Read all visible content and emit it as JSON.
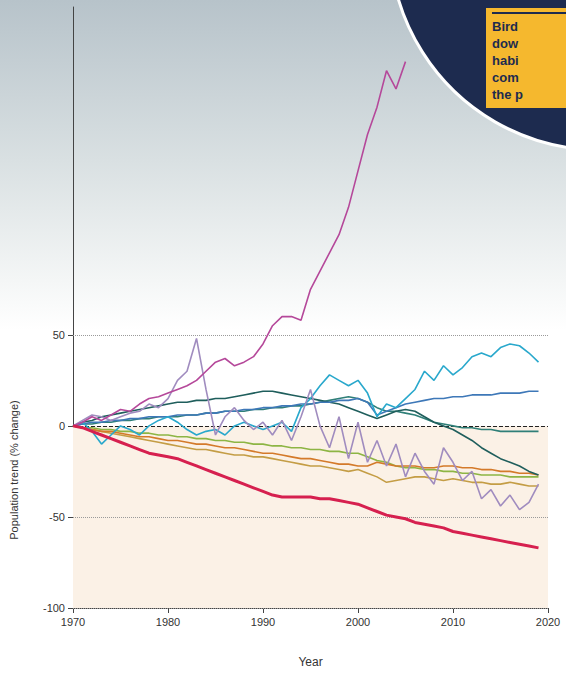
{
  "chart_data": {
    "type": "line",
    "x_label": "Year",
    "y_label": "Population trend (% change)",
    "annotation": [
      "Bird",
      "dow",
      "habi",
      "com",
      "the p"
    ],
    "xlim": [
      1970,
      2020
    ],
    "xticks": [
      1970,
      1980,
      1990,
      2000,
      2010,
      2020
    ],
    "ylim": [
      -100,
      230
    ],
    "yticks": [
      -100,
      -50,
      0,
      50
    ],
    "grid": true,
    "x": [
      1970,
      1971,
      1972,
      1973,
      1974,
      1975,
      1976,
      1977,
      1978,
      1979,
      1980,
      1981,
      1982,
      1983,
      1984,
      1985,
      1986,
      1987,
      1988,
      1989,
      1990,
      1991,
      1992,
      1993,
      1994,
      1995,
      1996,
      1997,
      1998,
      1999,
      2000,
      2001,
      2002,
      2003,
      2004,
      2005,
      2006,
      2007,
      2008,
      2009,
      2010,
      2011,
      2012,
      2013,
      2014,
      2015,
      2016,
      2017,
      2018,
      2019
    ],
    "series": [
      {
        "color": "#8db544",
        "values": [
          0,
          -1,
          -1,
          -2,
          -2,
          -3,
          -3,
          -4,
          -4,
          -5,
          -5,
          -6,
          -6,
          -7,
          -7,
          -8,
          -8,
          -9,
          -9,
          -10,
          -10,
          -11,
          -11,
          -12,
          -12,
          -13,
          -13,
          -14,
          -14,
          -15,
          -15,
          -17,
          -19,
          -20,
          -22,
          -23,
          -23,
          -24,
          -24,
          -25,
          -25,
          -26,
          -26,
          -27,
          -27,
          -27,
          -28,
          -28,
          -28,
          -28
        ]
      },
      {
        "color": "#c49d45",
        "values": [
          0,
          -1,
          -2,
          -3,
          -4,
          -5,
          -6,
          -7,
          -8,
          -9,
          -10,
          -11,
          -12,
          -13,
          -13,
          -14,
          -15,
          -16,
          -16,
          -17,
          -17,
          -18,
          -19,
          -20,
          -21,
          -22,
          -22,
          -23,
          -24,
          -25,
          -24,
          -26,
          -28,
          -31,
          -30,
          -29,
          -28,
          -28,
          -29,
          -30,
          -29,
          -30,
          -31,
          -31,
          -32,
          -32,
          -31,
          -32,
          -33,
          -33
        ]
      },
      {
        "color": "#d47a2a",
        "values": [
          0,
          -1,
          -2,
          -3,
          -3,
          -4,
          -5,
          -6,
          -6,
          -7,
          -8,
          -8,
          -9,
          -10,
          -10,
          -11,
          -12,
          -12,
          -13,
          -14,
          -15,
          -15,
          -16,
          -17,
          -18,
          -18,
          -19,
          -20,
          -21,
          -21,
          -22,
          -22,
          -20,
          -21,
          -22,
          -22,
          -22,
          -23,
          -23,
          -22,
          -22,
          -23,
          -23,
          -24,
          -24,
          -25,
          -25,
          -26,
          -26,
          -27
        ]
      },
      {
        "color": "#2f7f78",
        "values": [
          0,
          1,
          1,
          2,
          2,
          3,
          3,
          4,
          4,
          5,
          5,
          5,
          6,
          6,
          7,
          7,
          8,
          8,
          8,
          9,
          9,
          10,
          10,
          11,
          11,
          12,
          13,
          14,
          15,
          16,
          15,
          13,
          10,
          8,
          8,
          7,
          6,
          4,
          2,
          1,
          0,
          -1,
          -1,
          -2,
          -2,
          -3,
          -3,
          -3,
          -3,
          -3
        ]
      },
      {
        "color": "#1f5e5c",
        "values": [
          0,
          2,
          3,
          5,
          6,
          7,
          8,
          9,
          10,
          11,
          12,
          13,
          13,
          14,
          14,
          15,
          15,
          16,
          17,
          18,
          19,
          19,
          18,
          17,
          16,
          15,
          14,
          13,
          12,
          10,
          8,
          6,
          4,
          6,
          8,
          9,
          8,
          5,
          2,
          0,
          -2,
          -5,
          -8,
          -12,
          -15,
          -18,
          -20,
          -22,
          -25,
          -27
        ]
      },
      {
        "color": "#3e78b8",
        "values": [
          0,
          1,
          2,
          2,
          3,
          3,
          4,
          4,
          5,
          5,
          5,
          6,
          6,
          6,
          7,
          7,
          8,
          8,
          9,
          9,
          10,
          10,
          11,
          11,
          12,
          12,
          13,
          13,
          14,
          14,
          15,
          13,
          6,
          8,
          10,
          12,
          13,
          14,
          15,
          15,
          16,
          16,
          17,
          17,
          17,
          18,
          18,
          18,
          19,
          19
        ]
      },
      {
        "color": "#29a8cc",
        "values": [
          0,
          2,
          -3,
          -10,
          -5,
          0,
          -2,
          -5,
          0,
          3,
          5,
          2,
          -2,
          -5,
          -3,
          -2,
          -5,
          0,
          2,
          0,
          -2,
          0,
          2,
          -3,
          10,
          15,
          22,
          28,
          25,
          22,
          25,
          18,
          5,
          12,
          10,
          15,
          20,
          30,
          25,
          33,
          28,
          32,
          38,
          40,
          38,
          43,
          45,
          44,
          40,
          35
        ]
      },
      {
        "color": "#a08cbf",
        "values": [
          0,
          3,
          6,
          5,
          3,
          5,
          7,
          8,
          12,
          10,
          15,
          25,
          30,
          48,
          20,
          -5,
          5,
          10,
          3,
          -2,
          2,
          -5,
          3,
          -8,
          5,
          20,
          0,
          -12,
          5,
          -18,
          2,
          -20,
          -8,
          -22,
          -10,
          -28,
          -15,
          -25,
          -32,
          -12,
          -20,
          -30,
          -25,
          -40,
          -35,
          -44,
          -38,
          -46,
          -42,
          -32
        ]
      },
      {
        "color": "#b5489a",
        "values": [
          0,
          2,
          5,
          3,
          6,
          9,
          8,
          12,
          15,
          16,
          18,
          20,
          22,
          25,
          30,
          35,
          37,
          33,
          35,
          38,
          45,
          55,
          60,
          60,
          58,
          75,
          85,
          95,
          105,
          120,
          140,
          160,
          175,
          195,
          185,
          200,
          null,
          null,
          null,
          null,
          null,
          null,
          null,
          null,
          null,
          null,
          null,
          null,
          null,
          null
        ]
      },
      {
        "color": "#d6204f",
        "values": [
          0,
          -1,
          -3,
          -5,
          -7,
          -9,
          -11,
          -13,
          -15,
          -16,
          -17,
          -18,
          -20,
          -22,
          -24,
          -26,
          -28,
          -30,
          -32,
          -34,
          -36,
          -38,
          -39,
          -39,
          -39,
          -39,
          -40,
          -40,
          -41,
          -42,
          -43,
          -45,
          -47,
          -49,
          -50,
          -51,
          -53,
          -54,
          -55,
          -56,
          -58,
          -59,
          -60,
          -61,
          -62,
          -63,
          -64,
          -65,
          -66,
          -67
        ]
      }
    ]
  }
}
